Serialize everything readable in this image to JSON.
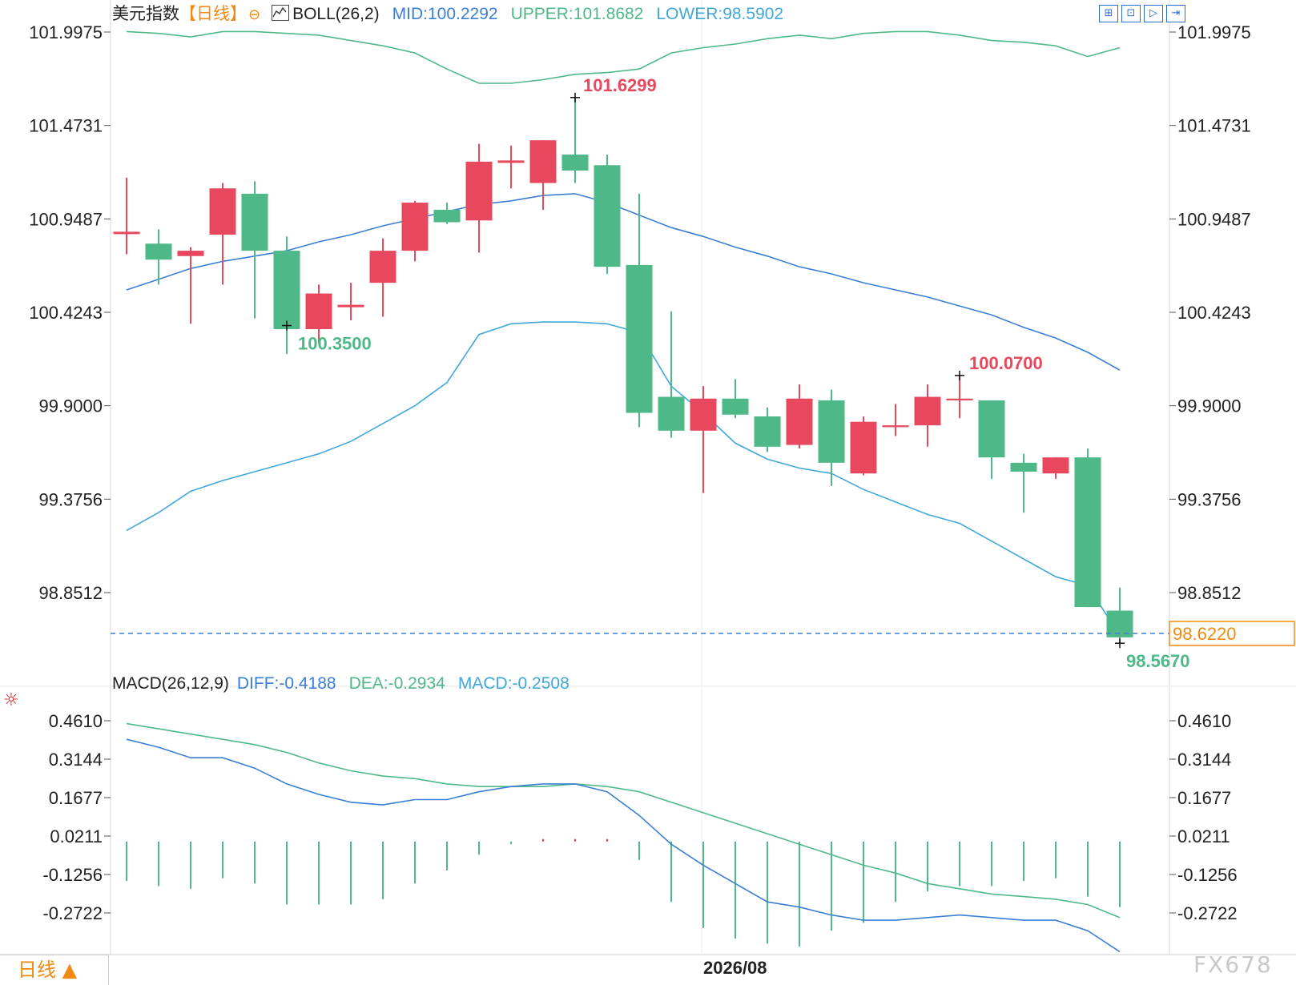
{
  "header": {
    "instrument": "美元指数",
    "period_tag": "【日线】",
    "period_symbol": "⊖",
    "boll_label": "BOLL(26,2)",
    "mid": "MID:100.2292",
    "upper": "UPPER:101.8682",
    "lower": "LOWER:98.5902"
  },
  "toolbar": {
    "icons": [
      "fit-icon",
      "zoom-in-icon",
      "step-forward-icon",
      "play-end-icon"
    ]
  },
  "macd_header": {
    "label": "MACD(26,12,9)",
    "diff": "DIFF:-0.4188",
    "dea": "DEA:-0.2934",
    "macd": "MACD:-0.2508"
  },
  "bottom": {
    "period_button": "日线 ▲",
    "watermark": "FX678"
  },
  "colors": {
    "up": "#e8485e",
    "down": "#4fb888",
    "mid": "#3a7fd5",
    "upper": "#4fb888",
    "lower": "#40a8d8",
    "diff": "#3a7fd5",
    "dea": "#4fb888",
    "price_tag": "#f08a12"
  },
  "chart_data": [
    {
      "type": "candlestick",
      "ylim": [
        98.53,
        102.2
      ],
      "y_ticks": [
        "101.9975",
        "101.4731",
        "100.9487",
        "100.4243",
        "99.9000",
        "99.3756",
        "98.8512"
      ],
      "x_label": "2026/08",
      "candles": [
        {
          "open": 100.87,
          "close": 100.87,
          "high": 101.18,
          "low": 100.75
        },
        {
          "open": 100.81,
          "close": 100.72,
          "high": 100.89,
          "low": 100.58
        },
        {
          "open": 100.74,
          "close": 100.77,
          "high": 100.79,
          "low": 100.36
        },
        {
          "open": 100.86,
          "close": 101.12,
          "high": 101.15,
          "low": 100.58
        },
        {
          "open": 101.09,
          "close": 100.77,
          "high": 101.16,
          "low": 100.39
        },
        {
          "open": 100.77,
          "close": 100.33,
          "high": 100.85,
          "low": 100.19
        },
        {
          "open": 100.33,
          "close": 100.53,
          "high": 100.58,
          "low": 100.25
        },
        {
          "open": 100.46,
          "close": 100.46,
          "high": 100.59,
          "low": 100.38
        },
        {
          "open": 100.59,
          "close": 100.77,
          "high": 100.84,
          "low": 100.4
        },
        {
          "open": 100.77,
          "close": 101.04,
          "high": 101.05,
          "low": 100.71
        },
        {
          "open": 101.0,
          "close": 100.93,
          "high": 101.04,
          "low": 100.92
        },
        {
          "open": 100.94,
          "close": 101.27,
          "high": 101.37,
          "low": 100.76
        },
        {
          "open": 101.27,
          "close": 101.27,
          "high": 101.36,
          "low": 101.12
        },
        {
          "open": 101.15,
          "close": 101.39,
          "high": 101.39,
          "low": 101.0
        },
        {
          "open": 101.31,
          "close": 101.22,
          "high": 101.63,
          "low": 101.15
        },
        {
          "open": 101.25,
          "close": 100.68,
          "high": 101.31,
          "low": 100.64
        },
        {
          "open": 100.69,
          "close": 99.86,
          "high": 101.09,
          "low": 99.78
        },
        {
          "open": 99.95,
          "close": 99.76,
          "high": 100.43,
          "low": 99.72
        },
        {
          "open": 99.76,
          "close": 99.94,
          "high": 100.01,
          "low": 99.41
        },
        {
          "open": 99.94,
          "close": 99.85,
          "high": 100.05,
          "low": 99.83
        },
        {
          "open": 99.84,
          "close": 99.67,
          "high": 99.89,
          "low": 99.64
        },
        {
          "open": 99.68,
          "close": 99.94,
          "high": 100.02,
          "low": 99.66
        },
        {
          "open": 99.93,
          "close": 99.58,
          "high": 99.99,
          "low": 99.45
        },
        {
          "open": 99.52,
          "close": 99.81,
          "high": 99.84,
          "low": 99.51
        },
        {
          "open": 99.78,
          "close": 99.79,
          "high": 99.91,
          "low": 99.73
        },
        {
          "open": 99.79,
          "close": 99.95,
          "high": 100.02,
          "low": 99.67
        },
        {
          "open": 99.93,
          "close": 99.94,
          "high": 100.07,
          "low": 99.83
        },
        {
          "open": 99.93,
          "close": 99.61,
          "high": 99.93,
          "low": 99.49
        },
        {
          "open": 99.58,
          "close": 99.53,
          "high": 99.63,
          "low": 99.3
        },
        {
          "open": 99.52,
          "close": 99.61,
          "high": 99.61,
          "low": 99.49
        },
        {
          "open": 99.61,
          "close": 98.77,
          "high": 99.66,
          "low": 98.77
        },
        {
          "open": 98.75,
          "close": 98.6,
          "high": 98.88,
          "low": 98.57
        }
      ],
      "boll_series": [
        {
          "name": "UPPER",
          "values": [
            102.0,
            101.99,
            101.97,
            102.0,
            102.0,
            101.99,
            101.98,
            101.95,
            101.92,
            101.88,
            101.79,
            101.71,
            101.71,
            101.73,
            101.76,
            101.77,
            101.79,
            101.88,
            101.91,
            101.93,
            101.96,
            101.98,
            101.96,
            101.99,
            102.0,
            102.0,
            101.98,
            101.95,
            101.94,
            101.92,
            101.86,
            101.91
          ]
        },
        {
          "name": "MID",
          "values": [
            100.55,
            100.61,
            100.67,
            100.71,
            100.74,
            100.77,
            100.82,
            100.86,
            100.91,
            100.95,
            100.99,
            101.03,
            101.05,
            101.08,
            101.09,
            101.04,
            100.97,
            100.9,
            100.85,
            100.79,
            100.74,
            100.68,
            100.64,
            100.59,
            100.55,
            100.51,
            100.46,
            100.41,
            100.34,
            100.28,
            100.2,
            100.1
          ]
        },
        {
          "name": "LOWER",
          "values": [
            99.2,
            99.3,
            99.42,
            99.48,
            99.53,
            99.58,
            99.63,
            99.7,
            99.8,
            99.9,
            100.03,
            100.3,
            100.36,
            100.37,
            100.37,
            100.36,
            100.31,
            100.01,
            99.86,
            99.69,
            99.6,
            99.55,
            99.52,
            99.43,
            99.36,
            99.29,
            99.24,
            99.14,
            99.04,
            98.94,
            98.89,
            98.61
          ]
        }
      ],
      "annotations": [
        {
          "text": "101.6299",
          "index": 14,
          "value": 101.6299
        },
        {
          "text": "100.3500",
          "index": 5,
          "value": 100.35
        },
        {
          "text": "100.0700",
          "index": 26,
          "value": 100.07
        },
        {
          "text": "98.5670",
          "index": 31,
          "value": 98.567
        }
      ],
      "last_price": {
        "text": "98.6220",
        "value": 98.622
      }
    },
    {
      "type": "line-histogram",
      "name": "MACD(26,12,9)",
      "ylim": [
        -0.36,
        0.52
      ],
      "y_ticks": [
        "0.4610",
        "0.3144",
        "0.1677",
        "0.0211",
        "-0.1256",
        "-0.2722"
      ],
      "series": [
        {
          "name": "DIFF",
          "values": [
            0.39,
            0.36,
            0.32,
            0.32,
            0.28,
            0.22,
            0.18,
            0.15,
            0.14,
            0.16,
            0.16,
            0.19,
            0.21,
            0.22,
            0.22,
            0.19,
            0.1,
            -0.01,
            -0.09,
            -0.16,
            -0.23,
            -0.25,
            -0.28,
            -0.3,
            -0.3,
            -0.29,
            -0.28,
            -0.29,
            -0.3,
            -0.3,
            -0.34,
            -0.42
          ]
        },
        {
          "name": "DEA",
          "values": [
            0.45,
            0.43,
            0.41,
            0.39,
            0.37,
            0.34,
            0.3,
            0.27,
            0.25,
            0.24,
            0.22,
            0.21,
            0.21,
            0.21,
            0.22,
            0.21,
            0.19,
            0.15,
            0.11,
            0.07,
            0.03,
            -0.01,
            -0.05,
            -0.09,
            -0.12,
            -0.16,
            -0.18,
            -0.2,
            -0.21,
            -0.22,
            -0.24,
            -0.29
          ]
        },
        {
          "name": "MACD",
          "values": [
            -0.15,
            -0.17,
            -0.18,
            -0.14,
            -0.16,
            -0.24,
            -0.24,
            -0.24,
            -0.22,
            -0.16,
            -0.11,
            -0.05,
            -0.01,
            0.01,
            0.01,
            0.01,
            -0.07,
            -0.23,
            -0.33,
            -0.37,
            -0.39,
            -0.4,
            -0.34,
            -0.31,
            -0.23,
            -0.19,
            -0.17,
            -0.17,
            -0.15,
            -0.14,
            -0.21,
            -0.25
          ]
        }
      ]
    }
  ]
}
